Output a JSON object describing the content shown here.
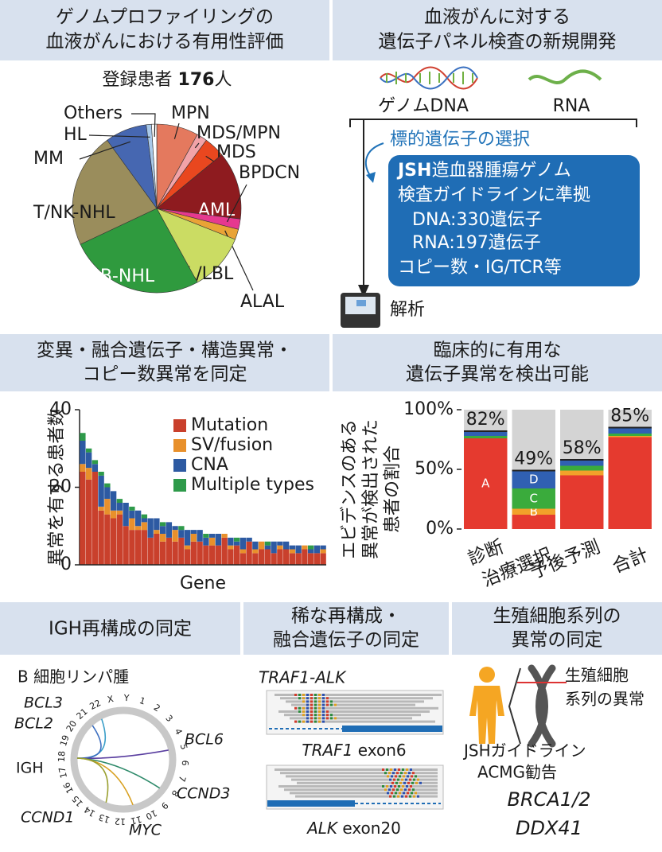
{
  "header_genome": {
    "title_lines": [
      "ゲノムプロファイリングの",
      "血液がんにおける有用性評価"
    ]
  },
  "registered": {
    "label": "登録患者",
    "count": 176,
    "unit": "人"
  },
  "header_panel": {
    "title_lines": [
      "血液がんに対する",
      "遺伝子パネル検査の新規開発"
    ]
  },
  "panel_flow": {
    "dna": "ゲノムDNA",
    "rna": "RNA",
    "selection": "標的遺伝子の選択",
    "box_bold": "JSH",
    "box_lines": [
      "造血器腫瘍ゲノム",
      "検査ガイドラインに準拠",
      "DNA:330遺伝子",
      "RNA:197遺伝子",
      "コピー数・IG/TCR等"
    ],
    "analysis": "解析"
  },
  "header_variants": {
    "title_lines": [
      "変異・融合遺伝子・構造異常・",
      "コピー数異常を同定"
    ]
  },
  "header_clinical": {
    "title_lines": [
      "臨床的に有用な",
      "遺伝子異常を検出可能"
    ]
  },
  "chart_data": [
    {
      "type": "pie",
      "categories": [
        "MPN",
        "MDS/MPN",
        "MDS",
        "AML",
        "BPDCN",
        "ALAL",
        "ALL/LBL",
        "B-NHL",
        "T/NK-NHL",
        "MM",
        "HL",
        "Others"
      ],
      "values": [
        8,
        2,
        4,
        13,
        2,
        2,
        11,
        26,
        22,
        8,
        1,
        1
      ],
      "colors": [
        "#e4795e",
        "#f2a3a8",
        "#e9471f",
        "#8e1b1f",
        "#e6398f",
        "#e9a336",
        "#cbdc63",
        "#2f9a3e",
        "#9a8d5c",
        "#4667b1",
        "#a9c9e9",
        "#ffffff"
      ]
    },
    {
      "type": "bar",
      "stacked": true,
      "xlabel": "Gene",
      "ylabel": "異常を有する患者数",
      "legend": "upper right",
      "categories": [
        null,
        null,
        null,
        null,
        null,
        null,
        null,
        null,
        null,
        null,
        null,
        null,
        null,
        null,
        null,
        null,
        null,
        null,
        null,
        null,
        null,
        null,
        null,
        null,
        null,
        null,
        null,
        null,
        null,
        null,
        null,
        null,
        null,
        null,
        null,
        null,
        null,
        null,
        null,
        null
      ],
      "series": [
        {
          "name": "Mutation",
          "color": "#c9402c",
          "values": [
            24,
            22,
            24,
            14,
            13,
            12,
            13,
            10,
            9,
            9,
            9,
            7,
            8,
            6,
            7,
            6,
            7,
            4,
            6,
            6,
            5,
            5,
            5,
            7,
            4,
            5,
            3,
            6,
            3,
            4,
            4,
            3,
            4,
            4,
            3,
            3,
            4,
            3,
            3,
            3
          ]
        },
        {
          "name": "SV/fusion",
          "color": "#e8902b",
          "values": [
            2,
            3,
            0,
            1,
            4,
            2,
            1,
            0,
            3,
            1,
            2,
            0,
            1,
            2,
            0,
            3,
            0,
            1,
            2,
            0,
            0,
            2,
            0,
            1,
            1,
            0,
            1,
            0,
            1,
            2,
            0,
            0,
            1,
            0,
            1,
            0,
            1,
            0,
            0,
            1
          ]
        },
        {
          "name": "CNA",
          "color": "#2d5aa2",
          "values": [
            6,
            4,
            2,
            8,
            3,
            5,
            2,
            6,
            2,
            4,
            1,
            5,
            3,
            2,
            4,
            1,
            2,
            4,
            1,
            3,
            2,
            1,
            3,
            0,
            2,
            1,
            3,
            1,
            2,
            0,
            1,
            3,
            1,
            2,
            1,
            2,
            0,
            1,
            2,
            1
          ]
        },
        {
          "name": "Multiple types",
          "color": "#2e9a4a",
          "values": [
            2,
            1,
            1,
            1,
            1,
            0,
            1,
            0,
            1,
            0,
            1,
            0,
            0,
            1,
            0,
            0,
            1,
            0,
            0,
            0,
            1,
            0,
            0,
            0,
            0,
            1,
            0,
            0,
            0,
            0,
            1,
            0,
            0,
            0,
            0,
            0,
            0,
            1,
            0,
            0
          ]
        }
      ],
      "ylim": [
        0,
        40
      ],
      "yticks": [
        0,
        20,
        40
      ]
    },
    {
      "type": "bar",
      "stacked": true,
      "ylabel": [
        "エビデンスのある",
        "異常が検出された",
        "患者の割合"
      ],
      "categories": [
        "診断",
        "治療選択",
        "予後予測",
        "合計"
      ],
      "series": [
        {
          "name": "A",
          "color": "#e53a2f",
          "values": [
            76,
            12,
            45,
            77
          ]
        },
        {
          "name": "B",
          "color": "#f2a12a",
          "values": [
            0,
            5,
            4,
            1
          ]
        },
        {
          "name": "C",
          "color": "#3aab3c",
          "values": [
            2,
            17,
            4,
            2
          ]
        },
        {
          "name": "D",
          "color": "#3060b2",
          "values": [
            4,
            15,
            5,
            5
          ]
        }
      ],
      "totals": [
        82,
        49,
        58,
        85
      ],
      "value_labels": [
        "82%",
        "49%",
        "58%",
        "85%"
      ],
      "ylim": [
        0,
        100
      ],
      "yticks": [
        {
          "value": 0,
          "label": "0%"
        },
        {
          "value": 50,
          "label": "50%"
        },
        {
          "value": 100,
          "label": "100%"
        }
      ]
    }
  ],
  "header_igh": {
    "title": "IGH再構成の同定"
  },
  "circos": {
    "subtitle": "B 細胞リンパ腫",
    "chromosomes": [
      "1",
      "2",
      "3",
      "4",
      "5",
      "6",
      "7",
      "8",
      "9",
      "10",
      "11",
      "12",
      "13",
      "14",
      "15",
      "16",
      "17",
      "18",
      "19",
      "20",
      "21",
      "22",
      "X",
      "Y"
    ],
    "partner": "IGH",
    "genes": [
      "BCL3",
      "BCL2",
      "BCL6",
      "CCND3",
      "MYC",
      "CCND1"
    ]
  },
  "header_rare": {
    "title_lines": [
      "稀な再構成・",
      "融合遺伝子の同定"
    ]
  },
  "fusion": {
    "name": "TRAF1-ALK",
    "read1_gene": "TRAF1",
    "read1_exon": "exon6",
    "read2_gene": "ALK",
    "read2_exon": "exon20"
  },
  "header_germline": {
    "title_lines": [
      "生殖細胞系列の",
      "異常の同定"
    ]
  },
  "germline": {
    "label_lines": [
      "生殖細胞",
      "系列の異常"
    ],
    "guidelines": [
      "JSHガイドライン",
      "ACMG勧告"
    ],
    "genes": [
      "BRCA1/2",
      "DDX41"
    ]
  }
}
